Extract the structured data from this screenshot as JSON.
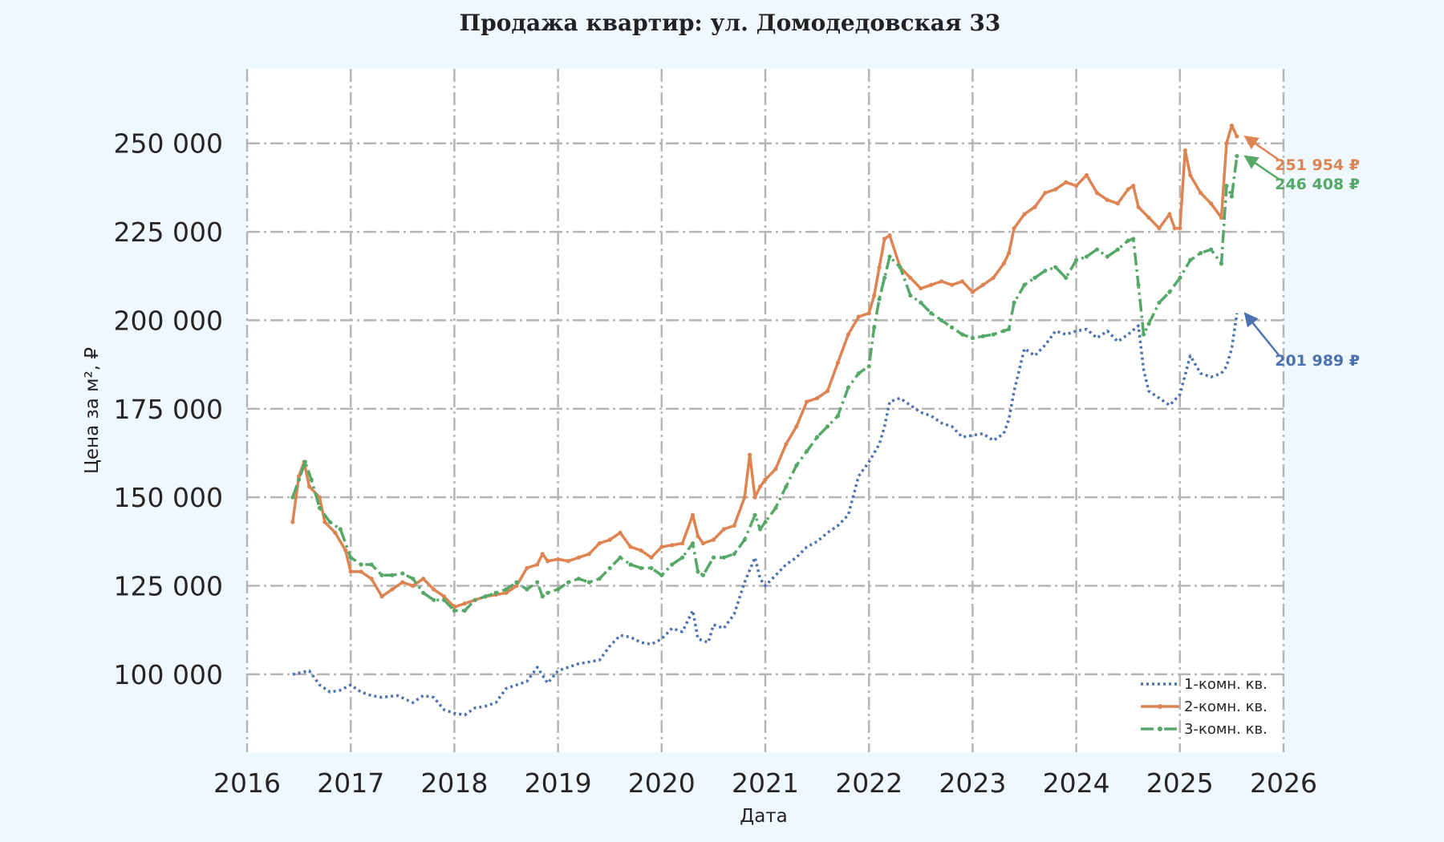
{
  "chart_data": {
    "type": "line",
    "title": "Продажа квартир: ул. Домодедовская 33",
    "xlabel": "Дата",
    "ylabel": "Цена за м², ₽",
    "xlim": [
      2016.0,
      2026.0
    ],
    "ylim": [
      78000,
      271000
    ],
    "x_ticks": [
      "2016",
      "2017",
      "2018",
      "2019",
      "2020",
      "2021",
      "2022",
      "2023",
      "2024",
      "2025",
      "2026"
    ],
    "y_ticks": [
      "100 000",
      "125 000",
      "150 000",
      "175 000",
      "200 000",
      "225 000",
      "250 000"
    ],
    "y_tick_values": [
      100000,
      125000,
      150000,
      175000,
      200000,
      225000,
      250000
    ],
    "grid": true,
    "legend_position": "bottom-right",
    "series": [
      {
        "name": "1-комн. кв.",
        "color": "#4c72b0",
        "line_style": "dotted",
        "x": [
          2016.44,
          2016.52,
          2016.6,
          2016.7,
          2016.8,
          2016.9,
          2017.0,
          2017.1,
          2017.2,
          2017.3,
          2017.45,
          2017.6,
          2017.7,
          2017.8,
          2017.9,
          2018.0,
          2018.1,
          2018.2,
          2018.3,
          2018.4,
          2018.5,
          2018.6,
          2018.7,
          2018.8,
          2018.9,
          2019.0,
          2019.2,
          2019.4,
          2019.5,
          2019.6,
          2019.7,
          2019.8,
          2019.9,
          2020.0,
          2020.1,
          2020.2,
          2020.3,
          2020.35,
          2020.45,
          2020.5,
          2020.6,
          2020.7,
          2020.8,
          2020.9,
          2020.95,
          2021.0,
          2021.1,
          2021.2,
          2021.3,
          2021.4,
          2021.5,
          2021.6,
          2021.7,
          2021.8,
          2021.9,
          2022.0,
          2022.1,
          2022.15,
          2022.2,
          2022.3,
          2022.4,
          2022.5,
          2022.6,
          2022.7,
          2022.8,
          2022.9,
          2023.0,
          2023.1,
          2023.2,
          2023.3,
          2023.35,
          2023.4,
          2023.5,
          2023.6,
          2023.7,
          2023.8,
          2023.9,
          2024.0,
          2024.1,
          2024.2,
          2024.3,
          2024.4,
          2024.5,
          2024.6,
          2024.65,
          2024.7,
          2024.8,
          2024.9,
          2025.0,
          2025.1,
          2025.2,
          2025.3,
          2025.4,
          2025.45,
          2025.5,
          2025.55
        ],
        "y": [
          100000,
          100500,
          101000,
          97000,
          95000,
          95500,
          97000,
          95000,
          94000,
          93500,
          94000,
          92000,
          94000,
          93500,
          90000,
          89000,
          88500,
          90500,
          91000,
          92000,
          96000,
          97000,
          98000,
          102000,
          97500,
          101000,
          103000,
          104000,
          108000,
          111000,
          110500,
          109000,
          108500,
          110000,
          113000,
          112000,
          118000,
          110000,
          109000,
          114000,
          113000,
          117000,
          126000,
          133000,
          127000,
          125000,
          128000,
          131000,
          133000,
          136000,
          137500,
          140000,
          142000,
          145000,
          156000,
          160000,
          165000,
          170000,
          177000,
          178000,
          176000,
          174000,
          173000,
          171000,
          170000,
          167000,
          167500,
          168000,
          166000,
          168000,
          172000,
          180000,
          192000,
          190000,
          193000,
          197000,
          196000,
          197000,
          197500,
          195000,
          197000,
          194000,
          196000,
          198500,
          186000,
          180000,
          178000,
          176000,
          179000,
          190000,
          185000,
          184000,
          185000,
          187000,
          192000,
          201989
        ]
      },
      {
        "name": "2-комн. кв.",
        "color": "#dd8452",
        "line_style": "solid",
        "x": [
          2016.44,
          2016.5,
          2016.55,
          2016.6,
          2016.7,
          2016.75,
          2016.85,
          2016.95,
          2017.0,
          2017.1,
          2017.2,
          2017.3,
          2017.4,
          2017.5,
          2017.6,
          2017.7,
          2017.8,
          2017.9,
          2018.0,
          2018.1,
          2018.2,
          2018.3,
          2018.4,
          2018.5,
          2018.6,
          2018.7,
          2018.8,
          2018.85,
          2018.9,
          2019.0,
          2019.1,
          2019.2,
          2019.3,
          2019.4,
          2019.5,
          2019.6,
          2019.7,
          2019.8,
          2019.9,
          2020.0,
          2020.1,
          2020.2,
          2020.3,
          2020.35,
          2020.4,
          2020.5,
          2020.6,
          2020.7,
          2020.8,
          2020.85,
          2020.9,
          2020.95,
          2021.0,
          2021.1,
          2021.2,
          2021.3,
          2021.4,
          2021.5,
          2021.6,
          2021.7,
          2021.8,
          2021.9,
          2022.0,
          2022.05,
          2022.1,
          2022.15,
          2022.2,
          2022.3,
          2022.4,
          2022.5,
          2022.6,
          2022.7,
          2022.8,
          2022.9,
          2023.0,
          2023.1,
          2023.2,
          2023.3,
          2023.35,
          2023.4,
          2023.5,
          2023.6,
          2023.7,
          2023.8,
          2023.9,
          2024.0,
          2024.1,
          2024.2,
          2024.3,
          2024.4,
          2024.5,
          2024.55,
          2024.6,
          2024.7,
          2024.8,
          2024.9,
          2024.95,
          2025.0,
          2025.05,
          2025.1,
          2025.2,
          2025.3,
          2025.4,
          2025.45,
          2025.5,
          2025.55
        ],
        "y": [
          143000,
          156000,
          160000,
          153000,
          150000,
          143000,
          140000,
          135000,
          129000,
          129000,
          127000,
          122000,
          124000,
          126000,
          125000,
          127000,
          124000,
          122000,
          119000,
          120000,
          121000,
          122000,
          122500,
          123000,
          125000,
          130000,
          131000,
          134000,
          132000,
          132500,
          132000,
          133000,
          134000,
          137000,
          138000,
          140000,
          136000,
          135000,
          133000,
          136000,
          136500,
          137000,
          145000,
          139000,
          137000,
          138000,
          141000,
          142000,
          150000,
          162000,
          150000,
          153000,
          155000,
          158000,
          165000,
          170000,
          177000,
          178000,
          180000,
          188000,
          196000,
          201000,
          202000,
          207000,
          215000,
          223000,
          224000,
          215000,
          212000,
          209000,
          210000,
          211000,
          210000,
          211000,
          208000,
          210000,
          212000,
          216000,
          219000,
          226000,
          230000,
          232000,
          236000,
          237000,
          239000,
          238000,
          241000,
          236000,
          234000,
          233000,
          237000,
          238000,
          232000,
          229000,
          226000,
          230000,
          226000,
          226000,
          248000,
          241000,
          236000,
          233000,
          229000,
          250000,
          255000,
          251954
        ]
      },
      {
        "name": "3-комн. кв.",
        "color": "#55a868",
        "line_style": "dashdot",
        "x": [
          2016.44,
          2016.5,
          2016.56,
          2016.62,
          2016.7,
          2016.8,
          2016.9,
          2017.0,
          2017.1,
          2017.2,
          2017.3,
          2017.4,
          2017.5,
          2017.6,
          2017.7,
          2017.8,
          2017.9,
          2018.0,
          2018.1,
          2018.2,
          2018.3,
          2018.4,
          2018.5,
          2018.6,
          2018.7,
          2018.8,
          2018.85,
          2018.9,
          2019.0,
          2019.1,
          2019.2,
          2019.3,
          2019.4,
          2019.5,
          2019.6,
          2019.7,
          2019.8,
          2019.9,
          2020.0,
          2020.1,
          2020.2,
          2020.3,
          2020.35,
          2020.4,
          2020.5,
          2020.6,
          2020.7,
          2020.8,
          2020.9,
          2020.95,
          2021.0,
          2021.1,
          2021.2,
          2021.3,
          2021.4,
          2021.5,
          2021.6,
          2021.7,
          2021.8,
          2021.9,
          2022.0,
          2022.05,
          2022.1,
          2022.15,
          2022.2,
          2022.3,
          2022.4,
          2022.5,
          2022.6,
          2022.7,
          2022.8,
          2022.9,
          2023.0,
          2023.1,
          2023.2,
          2023.3,
          2023.35,
          2023.4,
          2023.5,
          2023.6,
          2023.7,
          2023.8,
          2023.9,
          2024.0,
          2024.1,
          2024.2,
          2024.3,
          2024.4,
          2024.5,
          2024.55,
          2024.6,
          2024.65,
          2024.7,
          2024.8,
          2024.9,
          2025.0,
          2025.1,
          2025.2,
          2025.3,
          2025.4,
          2025.45,
          2025.5,
          2025.55
        ],
        "y": [
          150000,
          155000,
          160000,
          155000,
          147000,
          143000,
          141000,
          133000,
          131000,
          131000,
          128000,
          128000,
          128500,
          127000,
          123000,
          121000,
          121000,
          118000,
          118000,
          121000,
          122000,
          123000,
          124000,
          126000,
          124000,
          126000,
          122000,
          123000,
          124000,
          126000,
          127000,
          126000,
          127000,
          130000,
          133000,
          131000,
          130000,
          130000,
          128000,
          131000,
          133000,
          137000,
          129000,
          128000,
          133000,
          133000,
          134000,
          138000,
          145000,
          141000,
          143000,
          147000,
          153000,
          159000,
          163000,
          167000,
          170000,
          173000,
          181000,
          185000,
          187000,
          198000,
          206000,
          212000,
          218000,
          215000,
          207000,
          205000,
          202000,
          200000,
          198000,
          196000,
          195000,
          195500,
          196000,
          197000,
          197500,
          205000,
          210000,
          212000,
          214000,
          215000,
          212000,
          217000,
          218000,
          220000,
          218000,
          220000,
          222500,
          223000,
          210000,
          196000,
          199000,
          205000,
          208000,
          212000,
          217000,
          219000,
          220000,
          216000,
          238000,
          235000,
          246408
        ]
      }
    ],
    "annotations": [
      {
        "series": 1,
        "text": "251 954 ₽"
      },
      {
        "series": 2,
        "text": "246 408 ₽"
      },
      {
        "series": 0,
        "text": "201 989 ₽"
      }
    ]
  }
}
